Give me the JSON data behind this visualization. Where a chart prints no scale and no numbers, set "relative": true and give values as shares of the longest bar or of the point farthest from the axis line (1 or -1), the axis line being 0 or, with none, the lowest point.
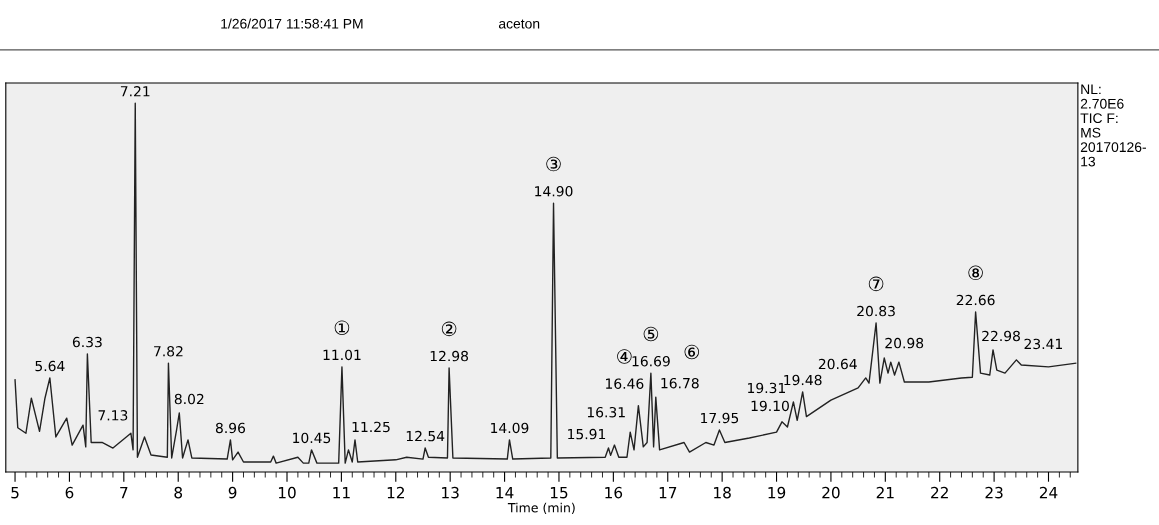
{
  "chart_data": {
    "type": "line",
    "relative": true,
    "xlabel": "Time (min)",
    "xlim": [
      4.83,
      24.54
    ],
    "xticks": [
      5,
      6,
      7,
      8,
      9,
      10,
      11,
      12,
      13,
      14,
      15,
      16,
      17,
      18,
      19,
      20,
      21,
      22,
      23,
      24
    ],
    "tick_labels": "x",
    "grid": false,
    "marker": "none",
    "line_style": "solid",
    "series": [
      {
        "color": "#222222",
        "x": [
          5.0,
          5.05,
          5.2,
          5.3,
          5.45,
          5.55,
          5.64,
          5.75,
          5.95,
          6.05,
          6.25,
          6.3,
          6.33,
          6.4,
          6.6,
          6.8,
          7.13,
          7.17,
          7.21,
          7.25,
          7.38,
          7.5,
          7.8,
          7.82,
          7.88,
          7.97,
          8.02,
          8.08,
          8.18,
          8.25,
          8.9,
          8.96,
          9.0,
          9.1,
          9.2,
          9.7,
          9.75,
          9.8,
          10.2,
          10.3,
          10.4,
          10.45,
          10.55,
          10.95,
          11.01,
          11.07,
          11.13,
          11.2,
          11.25,
          11.3,
          12.0,
          12.2,
          12.5,
          12.54,
          12.6,
          12.95,
          12.98,
          13.05,
          14.05,
          14.09,
          14.15,
          14.85,
          14.9,
          14.97,
          15.85,
          15.91,
          15.95,
          16.02,
          16.1,
          16.25,
          16.31,
          16.38,
          16.46,
          16.55,
          16.62,
          16.69,
          16.74,
          16.78,
          16.85,
          17.3,
          17.4,
          17.7,
          17.85,
          17.95,
          18.05,
          18.5,
          19.0,
          19.1,
          19.2,
          19.31,
          19.38,
          19.48,
          19.55,
          20.0,
          20.5,
          20.64,
          20.7,
          20.83,
          20.9,
          20.98,
          21.05,
          21.1,
          21.17,
          21.25,
          21.35,
          21.8,
          22.4,
          22.6,
          22.66,
          22.75,
          22.92,
          22.98,
          23.05,
          23.2,
          23.41,
          23.5,
          24.0,
          24.5
        ],
        "values": [
          0.25,
          0.12,
          0.105,
          0.2,
          0.11,
          0.2,
          0.255,
          0.095,
          0.146,
          0.073,
          0.127,
          0.068,
          0.32,
          0.08,
          0.08,
          0.065,
          0.105,
          0.06,
          1.0,
          0.04,
          0.095,
          0.046,
          0.04,
          0.295,
          0.038,
          0.114,
          0.16,
          0.038,
          0.087,
          0.038,
          0.035,
          0.087,
          0.033,
          0.054,
          0.027,
          0.027,
          0.043,
          0.024,
          0.04,
          0.024,
          0.024,
          0.06,
          0.024,
          0.024,
          0.285,
          0.024,
          0.06,
          0.027,
          0.087,
          0.027,
          0.033,
          0.04,
          0.035,
          0.065,
          0.04,
          0.038,
          0.282,
          0.038,
          0.035,
          0.087,
          0.035,
          0.038,
          0.729,
          0.038,
          0.04,
          0.065,
          0.045,
          0.073,
          0.04,
          0.04,
          0.108,
          0.06,
          0.18,
          0.068,
          0.08,
          0.268,
          0.068,
          0.203,
          0.06,
          0.08,
          0.054,
          0.08,
          0.073,
          0.114,
          0.08,
          0.092,
          0.108,
          0.136,
          0.122,
          0.19,
          0.14,
          0.217,
          0.15,
          0.195,
          0.228,
          0.255,
          0.241,
          0.404,
          0.241,
          0.309,
          0.268,
          0.298,
          0.263,
          0.298,
          0.244,
          0.244,
          0.255,
          0.257,
          0.434,
          0.268,
          0.263,
          0.331,
          0.276,
          0.268,
          0.304,
          0.29,
          0.285,
          0.295
        ]
      }
    ],
    "annotations": [
      "1/26/2017 11:58:41 PM",
      "aceton",
      "NL:\n2.70E6\nTIC F:\nMS\n20170126-\n13",
      {
        "text": "5.64",
        "x": 5.64,
        "y": 0.255
      },
      {
        "text": "6.33",
        "x": 6.33,
        "y": 0.32
      },
      {
        "text": "7.13",
        "x": 7.13,
        "y": 0.105
      },
      {
        "text": "7.21",
        "x": 7.21,
        "y": 1.0
      },
      {
        "text": "7.82",
        "x": 7.82,
        "y": 0.295
      },
      {
        "text": "8.02",
        "x": 8.02,
        "y": 0.16
      },
      {
        "text": "8.96",
        "x": 8.96,
        "y": 0.087
      },
      {
        "text": "10.45",
        "x": 10.45,
        "y": 0.06
      },
      {
        "text": "①",
        "x": 11.01,
        "y": 0.285
      },
      {
        "text": "11.01",
        "x": 11.01,
        "y": 0.285
      },
      {
        "text": "11.25",
        "x": 11.25,
        "y": 0.087
      },
      {
        "text": "12.54",
        "x": 12.54,
        "y": 0.065
      },
      {
        "text": "②",
        "x": 12.98,
        "y": 0.282
      },
      {
        "text": "12.98",
        "x": 12.98,
        "y": 0.282
      },
      {
        "text": "14.09",
        "x": 14.09,
        "y": 0.087
      },
      {
        "text": "③",
        "x": 14.9,
        "y": 0.729
      },
      {
        "text": "14.90",
        "x": 14.9,
        "y": 0.729
      },
      {
        "text": "15.91",
        "x": 15.91,
        "y": 0.065
      },
      {
        "text": "16.31",
        "x": 16.31,
        "y": 0.108
      },
      {
        "text": "④",
        "x": 16.46,
        "y": 0.18
      },
      {
        "text": "16.46",
        "x": 16.46,
        "y": 0.18
      },
      {
        "text": "⑤",
        "x": 16.69,
        "y": 0.268
      },
      {
        "text": "16.69",
        "x": 16.69,
        "y": 0.268
      },
      {
        "text": "⑥",
        "x": 16.78,
        "y": 0.203
      },
      {
        "text": "16.78",
        "x": 16.78,
        "y": 0.203
      },
      {
        "text": "17.95",
        "x": 17.95,
        "y": 0.114
      },
      {
        "text": "19.10",
        "x": 19.1,
        "y": 0.136
      },
      {
        "text": "19.31",
        "x": 19.31,
        "y": 0.19
      },
      {
        "text": "19.48",
        "x": 19.48,
        "y": 0.217
      },
      {
        "text": "20.64",
        "x": 20.64,
        "y": 0.255
      },
      {
        "text": "⑦",
        "x": 20.83,
        "y": 0.404
      },
      {
        "text": "20.83",
        "x": 20.83,
        "y": 0.404
      },
      {
        "text": "20.98",
        "x": 20.98,
        "y": 0.309
      },
      {
        "text": "⑧",
        "x": 22.66,
        "y": 0.434
      },
      {
        "text": "22.66",
        "x": 22.66,
        "y": 0.434
      },
      {
        "text": "22.98",
        "x": 22.98,
        "y": 0.331
      },
      {
        "text": "23.41",
        "x": 23.41,
        "y": 0.304
      }
    ]
  }
}
